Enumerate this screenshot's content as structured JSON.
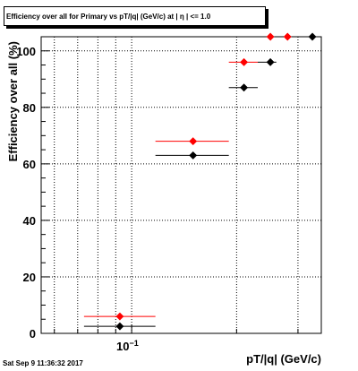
{
  "canvas": {
    "title": "Efficiency over all for Primary vs pT/|q| (GeV/c) at | η | <= 1.0"
  },
  "timestamp": "Sat Sep  9 11:36:32 2017",
  "chart_data": {
    "type": "scatter",
    "title": "Efficiency over all for Primary vs pT/|q| (GeV/c) at | η | <= 1.0",
    "xlabel": "pT/|q| (GeV/c)",
    "ylabel": "Efficiency over all (%)",
    "x_scale": "log",
    "xlim": [
      0.055,
      0.35
    ],
    "ylim": [
      0,
      105
    ],
    "grid": true,
    "x_major_tick_label": "10^{-1}",
    "x_major_tick_label_base": "10",
    "x_major_tick_label_exp": "−1",
    "y_ticks": [
      0,
      20,
      40,
      60,
      80,
      100
    ],
    "series": [
      {
        "color": "#ff0000",
        "points": [
          {
            "x": 0.0925,
            "xlo": 0.073,
            "xhi": 0.117,
            "y": 6
          },
          {
            "x": 0.15,
            "xlo": 0.117,
            "xhi": 0.19,
            "y": 68
          },
          {
            "x": 0.21,
            "xlo": 0.19,
            "xhi": 0.23,
            "y": 96
          },
          {
            "x": 0.25,
            "xlo": 0.25,
            "xhi": 0.25,
            "y": 105
          },
          {
            "x": 0.28,
            "xlo": 0.28,
            "xhi": 0.28,
            "y": 105
          }
        ]
      },
      {
        "color": "#000000",
        "points": [
          {
            "x": 0.0925,
            "xlo": 0.073,
            "xhi": 0.117,
            "y": 2.5
          },
          {
            "x": 0.15,
            "xlo": 0.117,
            "xhi": 0.19,
            "y": 63
          },
          {
            "x": 0.21,
            "xlo": 0.19,
            "xhi": 0.23,
            "y": 87
          },
          {
            "x": 0.25,
            "xlo": 0.23,
            "xhi": 0.26,
            "y": 96
          },
          {
            "x": 0.33,
            "xlo": 0.33,
            "xhi": 0.33,
            "y": 105
          }
        ]
      }
    ]
  }
}
